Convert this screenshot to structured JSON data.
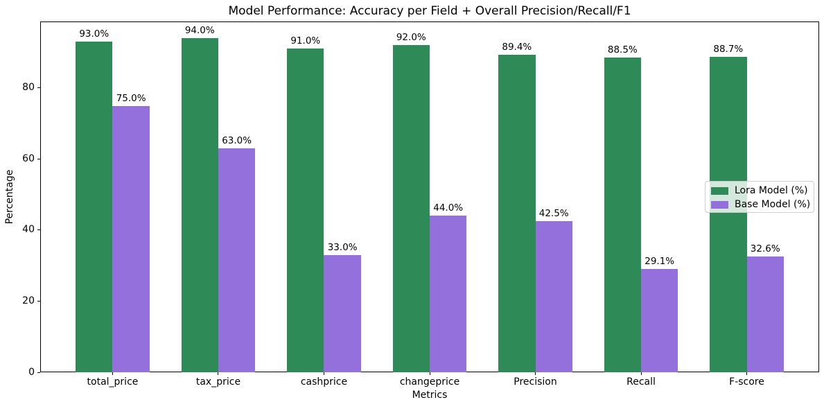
{
  "chart_data": {
    "type": "bar",
    "title": "Model Performance: Accuracy per Field + Overall Precision/Recall/F1",
    "xlabel": "Metrics",
    "ylabel": "Percentage",
    "categories": [
      "total_price",
      "tax_price",
      "cashprice",
      "changeprice",
      "Precision",
      "Recall",
      "F-score"
    ],
    "series": [
      {
        "name": "Lora Model (%)",
        "color": "#2e8b57",
        "values": [
          93.0,
          94.0,
          91.0,
          92.0,
          89.4,
          88.5,
          88.7
        ],
        "labels": [
          "93.0%",
          "94.0%",
          "91.0%",
          "92.0%",
          "89.4%",
          "88.5%",
          "88.7%"
        ]
      },
      {
        "name": "Base Model (%)",
        "color": "#9370db",
        "values": [
          75.0,
          63.0,
          33.0,
          44.0,
          42.5,
          29.1,
          32.6
        ],
        "labels": [
          "75.0%",
          "63.0%",
          "33.0%",
          "44.0%",
          "42.5%",
          "29.1%",
          "32.6%"
        ]
      }
    ],
    "ylim": [
      0,
      98.7
    ],
    "yticks": [
      0,
      20,
      40,
      60,
      80
    ],
    "grid": false,
    "legend": {
      "position": "center right",
      "entries": [
        "Lora Model (%)",
        "Base Model (%)"
      ]
    }
  }
}
